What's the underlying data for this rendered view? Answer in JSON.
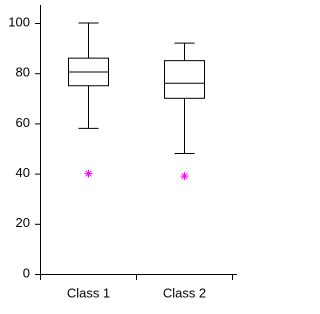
{
  "chart_data": {
    "type": "box",
    "categories": [
      "Class 1",
      "Class 2"
    ],
    "boxes": [
      {
        "min": 58,
        "q1": 75,
        "median": 80.5,
        "q3": 86,
        "max": 100,
        "outliers": [
          40
        ]
      },
      {
        "min": 48,
        "q1": 70,
        "median": 76,
        "q3": 85,
        "max": 92,
        "outliers": [
          39
        ]
      }
    ],
    "outlier_color": "#ff00ff",
    "ylim": [
      0,
      100
    ],
    "yticks": [
      0,
      20,
      40,
      60,
      80,
      100
    ]
  }
}
